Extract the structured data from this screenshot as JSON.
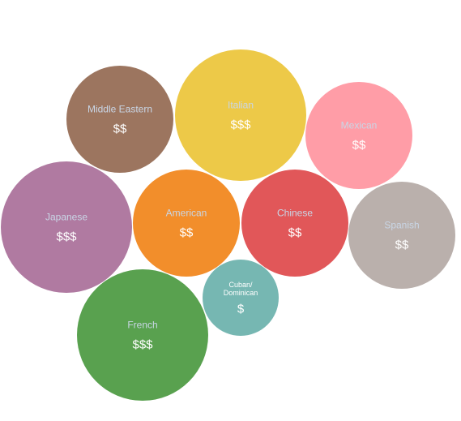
{
  "chart_data": {
    "type": "bubble",
    "bubbles": [
      {
        "category": "Middle Eastern",
        "price": "$$",
        "color": "#9c755f",
        "label_color": "#c9d6e6",
        "price_color": "#ffffff"
      },
      {
        "category": "Italian",
        "price": "$$$",
        "color": "#edc948",
        "label_color": "#c9d6e6",
        "price_color": "#ffffff"
      },
      {
        "category": "Mexican",
        "price": "$$",
        "color": "#ff9da7",
        "label_color": "#c9d6e6",
        "price_color": "#ffffff"
      },
      {
        "category": "Japanese",
        "price": "$$$",
        "color": "#b07aa1",
        "label_color": "#c9d6e6",
        "price_color": "#ffffff"
      },
      {
        "category": "American",
        "price": "$$",
        "color": "#f28e2b",
        "label_color": "#c9d6e6",
        "price_color": "#ffffff"
      },
      {
        "category": "Chinese",
        "price": "$$",
        "color": "#e15759",
        "label_color": "#c9d6e6",
        "price_color": "#ffffff"
      },
      {
        "category": "Spanish",
        "price": "$$",
        "color": "#bab0ac",
        "label_color": "#c9d6e6",
        "price_color": "#ffffff"
      },
      {
        "category": "Cuban/\nDominican",
        "price": "$",
        "color": "#76b7b2",
        "label_color": "#ffffff",
        "price_color": "#ffffff"
      },
      {
        "category": "French",
        "price": "$$$",
        "color": "#59a14f",
        "label_color": "#c9d6e6",
        "price_color": "#ffffff"
      }
    ]
  }
}
